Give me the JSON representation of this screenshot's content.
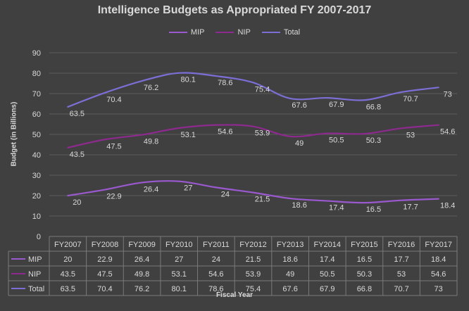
{
  "chart_data": {
    "type": "line",
    "title": "Intelligence Budgets as Appropriated FY 2007-2017",
    "xlabel": "Fiscal Year",
    "ylabel": "Budget (in Billions)",
    "ylim": [
      0,
      90
    ],
    "yticks": [
      "0",
      "10",
      "20",
      "30",
      "40",
      "50",
      "60",
      "70",
      "80",
      "90"
    ],
    "grid": true,
    "legend_position": "top",
    "categories": [
      "FY2007",
      "FY2008",
      "FY2009",
      "FY2010",
      "FY2011",
      "FY2012",
      "FY2013",
      "FY2014",
      "FY2015",
      "FY2016",
      "FY2017"
    ],
    "series": [
      {
        "name": "MIP",
        "color": "#9b59d0",
        "values": [
          20,
          22.9,
          26.4,
          27,
          24,
          21.5,
          18.6,
          17.4,
          16.5,
          17.7,
          18.4
        ],
        "labels": [
          "20",
          "22.9",
          "26.4",
          "27",
          "24",
          "21.5",
          "18.6",
          "17.4",
          "16.5",
          "17.7",
          "18.4"
        ]
      },
      {
        "name": "NIP",
        "color": "#8e2a8f",
        "values": [
          43.5,
          47.5,
          49.8,
          53.1,
          54.6,
          53.9,
          49,
          50.5,
          50.3,
          53,
          54.6
        ],
        "labels": [
          "43.5",
          "47.5",
          "49.8",
          "53.1",
          "54.6",
          "53.9",
          "49",
          "50.5",
          "50.3",
          "53",
          "54.6"
        ]
      },
      {
        "name": "Total",
        "color": "#7b6fd6",
        "values": [
          63.5,
          70.4,
          76.2,
          80.1,
          78.6,
          75.4,
          67.6,
          67.9,
          66.8,
          70.7,
          73
        ],
        "labels": [
          "63.5",
          "70.4",
          "76.2",
          "80.1",
          "78.6",
          "75.4",
          "67.6",
          "67.9",
          "66.8",
          "70.7",
          "73"
        ]
      }
    ],
    "data_table": true
  }
}
